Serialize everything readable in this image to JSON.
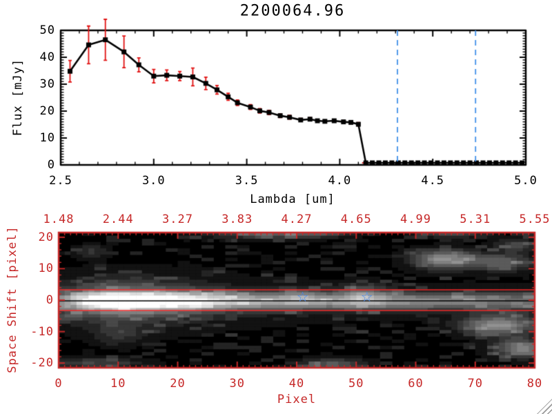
{
  "chart_data": [
    {
      "type": "line",
      "title": "2200064.96",
      "xlabel": "Lambda [um]",
      "ylabel": "Flux [mJy]",
      "xlim": [
        2.5,
        5.0
      ],
      "ylim": [
        0,
        50
      ],
      "x_tick_labels": [
        "2.5",
        "3.0",
        "3.5",
        "4.0",
        "4.5",
        "5.0"
      ],
      "y_tick_labels": [
        "0",
        "10",
        "20",
        "30",
        "40",
        "50"
      ],
      "x_minor_step": 0.1,
      "y_minor_step": 1,
      "line_color": "#000000",
      "marker": "filled-square",
      "error_color": "#e01010",
      "points": [
        [
          2.55,
          34.8,
          4.0
        ],
        [
          2.65,
          44.6,
          7.0
        ],
        [
          2.74,
          46.5,
          7.6
        ],
        [
          2.84,
          42.0,
          5.9
        ],
        [
          2.92,
          37.2,
          2.6
        ],
        [
          3.0,
          33.0,
          2.5
        ],
        [
          3.07,
          33.3,
          2.0
        ],
        [
          3.14,
          33.0,
          1.7
        ],
        [
          3.21,
          32.7,
          3.3
        ],
        [
          3.28,
          30.3,
          2.3
        ],
        [
          3.34,
          27.9,
          1.6
        ],
        [
          3.4,
          25.3,
          1.3
        ],
        [
          3.45,
          23.1,
          1.0
        ],
        [
          3.52,
          21.5,
          0.9
        ],
        [
          3.57,
          20.1,
          0.8
        ],
        [
          3.62,
          19.5,
          0.8
        ],
        [
          3.68,
          18.3,
          0.7
        ],
        [
          3.73,
          17.7,
          0.7
        ],
        [
          3.79,
          16.7,
          0.6
        ],
        [
          3.84,
          17.0,
          0.6
        ],
        [
          3.88,
          16.4,
          0.5
        ],
        [
          3.92,
          16.2,
          0.5
        ],
        [
          3.97,
          16.4,
          0.5
        ],
        [
          4.02,
          16.0,
          0.5
        ],
        [
          4.06,
          15.8,
          0.5
        ],
        [
          4.1,
          15.1,
          0.6
        ],
        [
          4.14,
          0,
          0
        ],
        [
          4.175,
          0,
          0
        ],
        [
          4.21,
          0,
          0
        ],
        [
          4.245,
          0,
          0
        ],
        [
          4.28,
          0,
          0
        ],
        [
          4.315,
          0,
          0
        ],
        [
          4.35,
          0,
          0
        ],
        [
          4.385,
          0,
          0
        ],
        [
          4.42,
          0,
          0
        ],
        [
          4.455,
          0,
          0
        ],
        [
          4.49,
          0,
          0
        ],
        [
          4.525,
          0,
          0
        ],
        [
          4.56,
          0,
          0
        ],
        [
          4.595,
          0,
          0
        ],
        [
          4.63,
          0,
          0
        ],
        [
          4.665,
          0,
          0
        ],
        [
          4.7,
          0,
          0
        ],
        [
          4.735,
          0,
          0
        ],
        [
          4.77,
          0,
          0
        ],
        [
          4.805,
          0,
          0
        ],
        [
          4.84,
          0,
          0
        ],
        [
          4.875,
          0,
          0
        ],
        [
          4.91,
          0,
          0
        ],
        [
          4.945,
          0,
          0
        ],
        [
          4.98,
          0,
          0
        ]
      ],
      "vlines": [
        {
          "x": 4.31,
          "color": "#3f8fe8",
          "style": "dashed"
        },
        {
          "x": 4.73,
          "color": "#3f8fe8",
          "style": "dashed"
        }
      ],
      "zero_line": {
        "y": 0,
        "x_start": 4.12,
        "x_end": 5.0,
        "color": "#dd2222",
        "style": "dashed"
      }
    },
    {
      "type": "heatmap",
      "xlabel": "Pixel",
      "ylabel": "Space Shift [pixel]",
      "xlim": [
        0,
        80
      ],
      "ylim": [
        -21.5,
        21.5
      ],
      "x_tick_labels": [
        "0",
        "10",
        "20",
        "30",
        "40",
        "50",
        "60",
        "70",
        "80"
      ],
      "y_tick_labels": [
        "20",
        "10",
        "0",
        "-10",
        "-20"
      ],
      "top_axis_tick_labels": [
        "1.48",
        "2.44",
        "3.27",
        "3.83",
        "4.27",
        "4.65",
        "4.99",
        "5.31",
        "5.55"
      ],
      "axis_color": "#c62828",
      "colormap": "grayscale",
      "band": {
        "y_center": -0.3,
        "sigma": 2.0,
        "profile": [
          [
            0,
            0.35
          ],
          [
            2,
            0.45
          ],
          [
            4,
            0.65
          ],
          [
            6,
            0.85
          ],
          [
            8,
            1.0
          ],
          [
            14,
            1.0
          ],
          [
            17,
            0.92
          ],
          [
            20,
            0.85
          ],
          [
            24,
            0.78
          ],
          [
            28,
            0.7
          ],
          [
            32,
            0.64
          ],
          [
            36,
            0.6
          ],
          [
            40,
            0.63
          ],
          [
            43,
            0.58
          ],
          [
            46,
            0.56
          ],
          [
            50,
            0.66
          ],
          [
            53,
            0.6
          ],
          [
            57,
            0.53
          ],
          [
            62,
            0.5
          ],
          [
            67,
            0.47
          ],
          [
            72,
            0.44
          ],
          [
            76,
            0.42
          ],
          [
            80,
            0.4
          ]
        ]
      },
      "halo": {
        "y_center": -0.5,
        "sigma": 5.5,
        "profile": [
          [
            0,
            0.2
          ],
          [
            4,
            0.3
          ],
          [
            8,
            0.38
          ],
          [
            12,
            0.4
          ],
          [
            16,
            0.36
          ],
          [
            20,
            0.3
          ],
          [
            24,
            0.22
          ],
          [
            28,
            0.15
          ],
          [
            34,
            0.1
          ],
          [
            45,
            0.07
          ],
          [
            60,
            0.05
          ],
          [
            80,
            0.04
          ]
        ]
      },
      "blobs": [
        {
          "x": 65,
          "y": 13,
          "sx": 4,
          "sy": 2.2,
          "amp": 0.55
        },
        {
          "x": 75,
          "y": 12,
          "sx": 3.5,
          "sy": 2,
          "amp": 0.35
        },
        {
          "x": 77,
          "y": 17.5,
          "sx": 2.5,
          "sy": 1.5,
          "amp": 0.28
        },
        {
          "x": 74,
          "y": -8,
          "sx": 4.5,
          "sy": 2.3,
          "amp": 0.55
        },
        {
          "x": 78,
          "y": -15.5,
          "sx": 3.5,
          "sy": 2,
          "amp": 0.5
        },
        {
          "x": 46,
          "y": -20.5,
          "sx": 4,
          "sy": 1.5,
          "amp": 0.35
        },
        {
          "x": 6,
          "y": -20,
          "sx": 6,
          "sy": 1.3,
          "amp": 0.25
        },
        {
          "x": 10,
          "y": -11,
          "sx": 3,
          "sy": 2.5,
          "amp": 0.16
        },
        {
          "x": 5.5,
          "y": 15.5,
          "sx": 2,
          "sy": 1.5,
          "amp": 0.2
        },
        {
          "x": 34,
          "y": 21,
          "sx": 7,
          "sy": 1.1,
          "amp": 0.3
        },
        {
          "x": 44,
          "y": 21.3,
          "sx": 4,
          "sy": 1,
          "amp": 0.25
        },
        {
          "x": 66,
          "y": 21.2,
          "sx": 4,
          "sy": 1,
          "amp": 0.3
        },
        {
          "x": 51.5,
          "y": 2.5,
          "sx": 2.5,
          "sy": 2,
          "amp": 0.25
        },
        {
          "x": 41,
          "y": 1.5,
          "sx": 2,
          "sy": 1.8,
          "amp": 0.15
        }
      ],
      "noise": {
        "seed": 11,
        "density": 0.28,
        "max_amp": 0.17
      },
      "aperture_lines": {
        "color": "#ee2222",
        "y_values": [
          3.3,
          -3.3
        ]
      },
      "trace_line": {
        "color": "#000000",
        "y": -0.2
      },
      "stars": [
        {
          "x": 41,
          "y": 0.8
        },
        {
          "x": 51.8,
          "y": 0.8
        }
      ],
      "star_color": "#4488ee",
      "star_glyph": "☆"
    }
  ]
}
